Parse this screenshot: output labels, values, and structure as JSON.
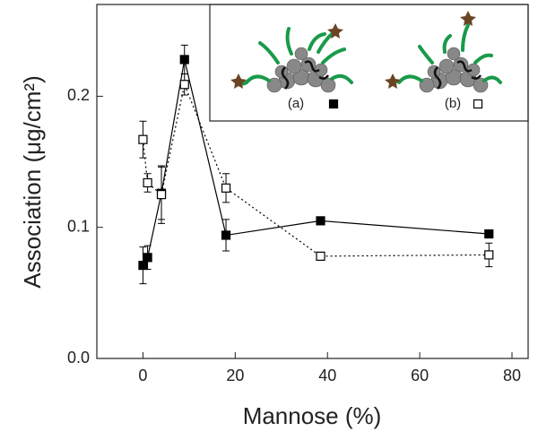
{
  "chart_data": {
    "type": "line",
    "x_label": "Mannose (%)",
    "y_label": "Association (μg/cm²)",
    "xlim": [
      -10,
      83.5
    ],
    "ylim": [
      0,
      0.27
    ],
    "xticks": [
      0,
      20,
      40,
      60,
      80
    ],
    "yticks": [
      {
        "value": 0,
        "label": "0.0"
      },
      {
        "value": 0.1,
        "label": "0.1"
      },
      {
        "value": 0.2,
        "label": "0.2"
      }
    ],
    "x": [
      0,
      1,
      4,
      9,
      18,
      38.5,
      75
    ],
    "series": [
      {
        "name": "(a)",
        "color": "#000000",
        "marker": "filled",
        "line": "solid",
        "values": [
          0.071,
          0.077,
          0.126,
          0.228,
          0.094,
          0.105,
          0.095
        ],
        "errors": [
          0.014,
          0.009,
          0.02,
          0.011,
          0.012,
          0.002,
          0.003
        ]
      },
      {
        "name": "(b)",
        "color": "#000000",
        "marker": "open",
        "line": "dotted",
        "values": [
          0.167,
          0.134,
          0.125,
          0.209,
          0.13,
          0.078,
          0.079
        ],
        "errors": [
          0.014,
          0.007,
          0.022,
          0.008,
          0.011,
          0.003,
          0.009
        ]
      }
    ]
  }
}
